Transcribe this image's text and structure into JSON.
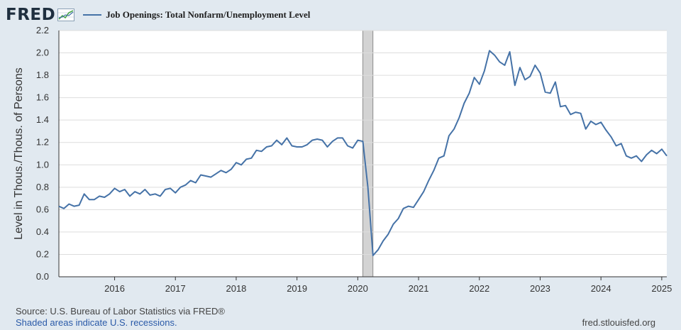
{
  "header": {
    "logo_text": "FRED",
    "logo_icon": "line-chart-icon",
    "legend_label": "Job Openings: Total Nonfarm/Unemployment Level"
  },
  "footer": {
    "source": "Source: U.S. Bureau of Labor Statistics via FRED®",
    "recession_note": "Shaded areas indicate U.S. recessions.",
    "site": "fred.stlouisfed.org"
  },
  "colors": {
    "line": "#4572a7",
    "plot_background": "#ffffff",
    "page_background": "#e1e9f0",
    "recession_shade": "#d3d3d3",
    "grid": "#dddddd"
  },
  "chart_data": {
    "type": "line",
    "title": "Job Openings: Total Nonfarm/Unemployment Level",
    "ylabel": "Level in Thous./Thous. of Persons",
    "xlabel": "",
    "ylim": [
      0,
      2.2
    ],
    "yticks": [
      "0.0",
      "0.2",
      "0.4",
      "0.6",
      "0.8",
      "1.0",
      "1.2",
      "1.4",
      "1.6",
      "1.8",
      "2.0",
      "2.2"
    ],
    "xlim": [
      "2015-02",
      "2025-02"
    ],
    "xticks": [
      "2016",
      "2017",
      "2018",
      "2019",
      "2020",
      "2021",
      "2022",
      "2023",
      "2024",
      "2025"
    ],
    "grid": true,
    "legend": "top-left",
    "recessions": [
      {
        "start": "2020-02",
        "end": "2020-04"
      }
    ],
    "series": [
      {
        "name": "Job Openings: Total Nonfarm/Unemployment Level",
        "points": [
          [
            "2015-02",
            0.63
          ],
          [
            "2015-03",
            0.61
          ],
          [
            "2015-04",
            0.65
          ],
          [
            "2015-05",
            0.63
          ],
          [
            "2015-06",
            0.64
          ],
          [
            "2015-07",
            0.74
          ],
          [
            "2015-08",
            0.69
          ],
          [
            "2015-09",
            0.69
          ],
          [
            "2015-10",
            0.72
          ],
          [
            "2015-11",
            0.71
          ],
          [
            "2015-12",
            0.74
          ],
          [
            "2016-01",
            0.79
          ],
          [
            "2016-02",
            0.76
          ],
          [
            "2016-03",
            0.78
          ],
          [
            "2016-04",
            0.72
          ],
          [
            "2016-05",
            0.76
          ],
          [
            "2016-06",
            0.74
          ],
          [
            "2016-07",
            0.78
          ],
          [
            "2016-08",
            0.73
          ],
          [
            "2016-09",
            0.74
          ],
          [
            "2016-10",
            0.72
          ],
          [
            "2016-11",
            0.78
          ],
          [
            "2016-12",
            0.79
          ],
          [
            "2017-01",
            0.75
          ],
          [
            "2017-02",
            0.8
          ],
          [
            "2017-03",
            0.82
          ],
          [
            "2017-04",
            0.86
          ],
          [
            "2017-05",
            0.84
          ],
          [
            "2017-06",
            0.91
          ],
          [
            "2017-07",
            0.9
          ],
          [
            "2017-08",
            0.89
          ],
          [
            "2017-09",
            0.92
          ],
          [
            "2017-10",
            0.95
          ],
          [
            "2017-11",
            0.93
          ],
          [
            "2017-12",
            0.96
          ],
          [
            "2018-01",
            1.02
          ],
          [
            "2018-02",
            1.0
          ],
          [
            "2018-03",
            1.05
          ],
          [
            "2018-04",
            1.06
          ],
          [
            "2018-05",
            1.13
          ],
          [
            "2018-06",
            1.12
          ],
          [
            "2018-07",
            1.16
          ],
          [
            "2018-08",
            1.17
          ],
          [
            "2018-09",
            1.22
          ],
          [
            "2018-10",
            1.18
          ],
          [
            "2018-11",
            1.24
          ],
          [
            "2018-12",
            1.17
          ],
          [
            "2019-01",
            1.16
          ],
          [
            "2019-02",
            1.16
          ],
          [
            "2019-03",
            1.18
          ],
          [
            "2019-04",
            1.22
          ],
          [
            "2019-05",
            1.23
          ],
          [
            "2019-06",
            1.22
          ],
          [
            "2019-07",
            1.16
          ],
          [
            "2019-08",
            1.21
          ],
          [
            "2019-09",
            1.24
          ],
          [
            "2019-10",
            1.24
          ],
          [
            "2019-11",
            1.17
          ],
          [
            "2019-12",
            1.15
          ],
          [
            "2020-01",
            1.22
          ],
          [
            "2020-02",
            1.21
          ],
          [
            "2020-03",
            0.8
          ],
          [
            "2020-04",
            0.19
          ],
          [
            "2020-05",
            0.24
          ],
          [
            "2020-06",
            0.32
          ],
          [
            "2020-07",
            0.38
          ],
          [
            "2020-08",
            0.47
          ],
          [
            "2020-09",
            0.52
          ],
          [
            "2020-10",
            0.61
          ],
          [
            "2020-11",
            0.63
          ],
          [
            "2020-12",
            0.62
          ],
          [
            "2021-01",
            0.69
          ],
          [
            "2021-02",
            0.76
          ],
          [
            "2021-03",
            0.86
          ],
          [
            "2021-04",
            0.95
          ],
          [
            "2021-05",
            1.06
          ],
          [
            "2021-06",
            1.08
          ],
          [
            "2021-07",
            1.26
          ],
          [
            "2021-08",
            1.32
          ],
          [
            "2021-09",
            1.42
          ],
          [
            "2021-10",
            1.55
          ],
          [
            "2021-11",
            1.64
          ],
          [
            "2021-12",
            1.78
          ],
          [
            "2022-01",
            1.72
          ],
          [
            "2022-02",
            1.84
          ],
          [
            "2022-03",
            2.02
          ],
          [
            "2022-04",
            1.98
          ],
          [
            "2022-05",
            1.92
          ],
          [
            "2022-06",
            1.89
          ],
          [
            "2022-07",
            2.01
          ],
          [
            "2022-08",
            1.71
          ],
          [
            "2022-09",
            1.87
          ],
          [
            "2022-10",
            1.76
          ],
          [
            "2022-11",
            1.79
          ],
          [
            "2022-12",
            1.89
          ],
          [
            "2023-01",
            1.82
          ],
          [
            "2023-02",
            1.65
          ],
          [
            "2023-03",
            1.64
          ],
          [
            "2023-04",
            1.74
          ],
          [
            "2023-05",
            1.52
          ],
          [
            "2023-06",
            1.53
          ],
          [
            "2023-07",
            1.45
          ],
          [
            "2023-08",
            1.47
          ],
          [
            "2023-09",
            1.46
          ],
          [
            "2023-10",
            1.32
          ],
          [
            "2023-11",
            1.39
          ],
          [
            "2023-12",
            1.36
          ],
          [
            "2024-01",
            1.38
          ],
          [
            "2024-02",
            1.31
          ],
          [
            "2024-03",
            1.25
          ],
          [
            "2024-04",
            1.17
          ],
          [
            "2024-05",
            1.19
          ],
          [
            "2024-06",
            1.08
          ],
          [
            "2024-07",
            1.06
          ],
          [
            "2024-08",
            1.08
          ],
          [
            "2024-09",
            1.03
          ],
          [
            "2024-10",
            1.09
          ],
          [
            "2024-11",
            1.13
          ],
          [
            "2024-12",
            1.1
          ],
          [
            "2025-01",
            1.14
          ],
          [
            "2025-02",
            1.08
          ]
        ]
      }
    ]
  }
}
